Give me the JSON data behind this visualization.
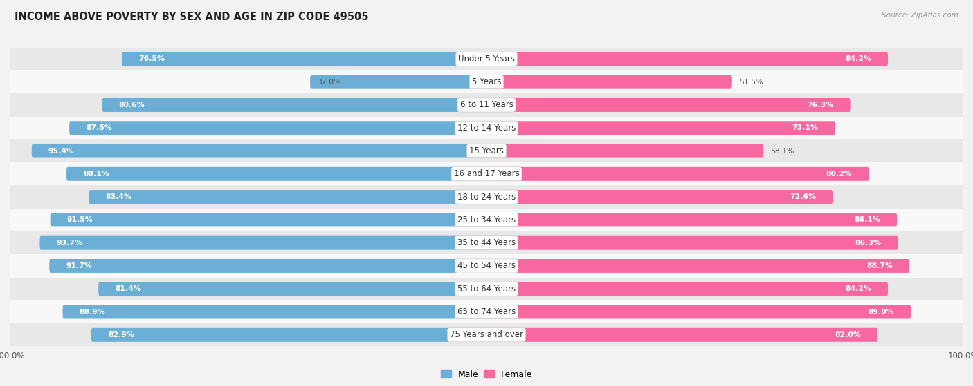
{
  "title": "INCOME ABOVE POVERTY BY SEX AND AGE IN ZIP CODE 49505",
  "source": "Source: ZipAtlas.com",
  "categories": [
    "Under 5 Years",
    "5 Years",
    "6 to 11 Years",
    "12 to 14 Years",
    "15 Years",
    "16 and 17 Years",
    "18 to 24 Years",
    "25 to 34 Years",
    "35 to 44 Years",
    "45 to 54 Years",
    "55 to 64 Years",
    "65 to 74 Years",
    "75 Years and over"
  ],
  "male_values": [
    76.5,
    37.0,
    80.6,
    87.5,
    95.4,
    88.1,
    83.4,
    91.5,
    93.7,
    91.7,
    81.4,
    88.9,
    82.9
  ],
  "female_values": [
    84.2,
    51.5,
    76.3,
    73.1,
    58.1,
    80.2,
    72.6,
    86.1,
    86.3,
    88.7,
    84.2,
    89.0,
    82.0
  ],
  "male_color": "#6baed6",
  "male_color_light": "#b8d9ef",
  "female_color": "#f768a1",
  "female_color_light": "#fbb4d4",
  "male_label": "Male",
  "female_label": "Female",
  "bar_height": 0.6,
  "xlim": 100.0,
  "bg_color": "#f2f2f2",
  "row_colors": [
    "#e8e8e8",
    "#f8f8f8"
  ],
  "title_fontsize": 10.5,
  "label_fontsize": 8.5,
  "value_fontsize": 7.8,
  "source_fontsize": 7.5
}
